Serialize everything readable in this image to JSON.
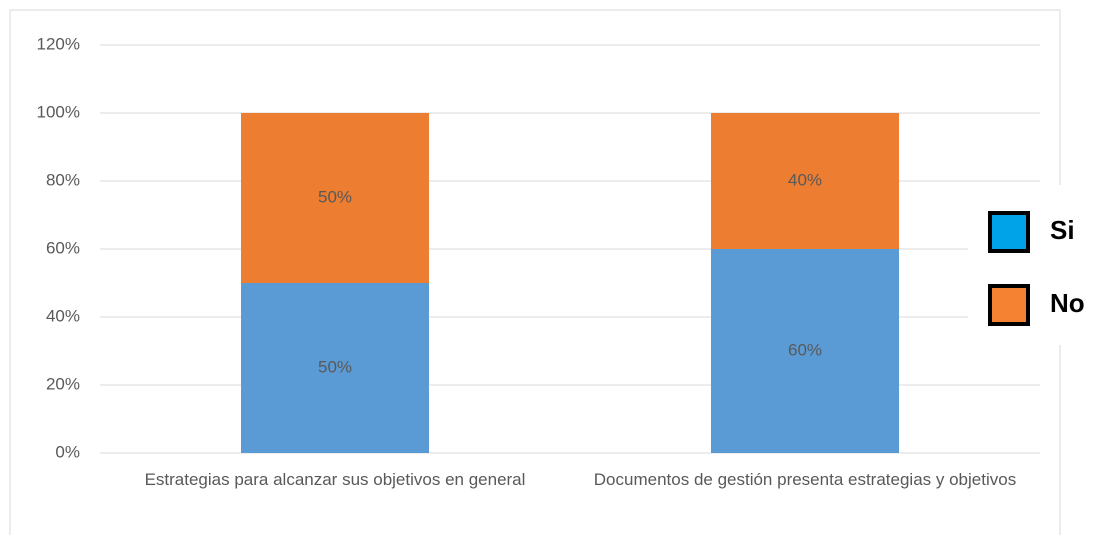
{
  "chart_data": {
    "type": "stacked_bar",
    "categories": [
      "Estrategias para alcanzar sus objetivos en general",
      "Documentos de gestión presenta estrategias y objetivos"
    ],
    "series": [
      {
        "name": "Si",
        "color": "#5b9bd5",
        "legend_color": "#00a2e8",
        "values": [
          50,
          60
        ],
        "value_labels": [
          "50%",
          "60%"
        ]
      },
      {
        "name": "No",
        "color": "#ed7d31",
        "legend_color": "#f58233",
        "values": [
          50,
          40
        ],
        "value_labels": [
          "50%",
          "40%"
        ]
      }
    ],
    "ylim": [
      0,
      120
    ],
    "yticks": [
      {
        "value": 0,
        "label": "0%"
      },
      {
        "value": 20,
        "label": "20%"
      },
      {
        "value": 40,
        "label": "40%"
      },
      {
        "value": 60,
        "label": "60%"
      },
      {
        "value": 80,
        "label": "80%"
      },
      {
        "value": 100,
        "label": "100%"
      },
      {
        "value": 120,
        "label": "120%"
      }
    ],
    "grid": true,
    "legend": "right"
  }
}
